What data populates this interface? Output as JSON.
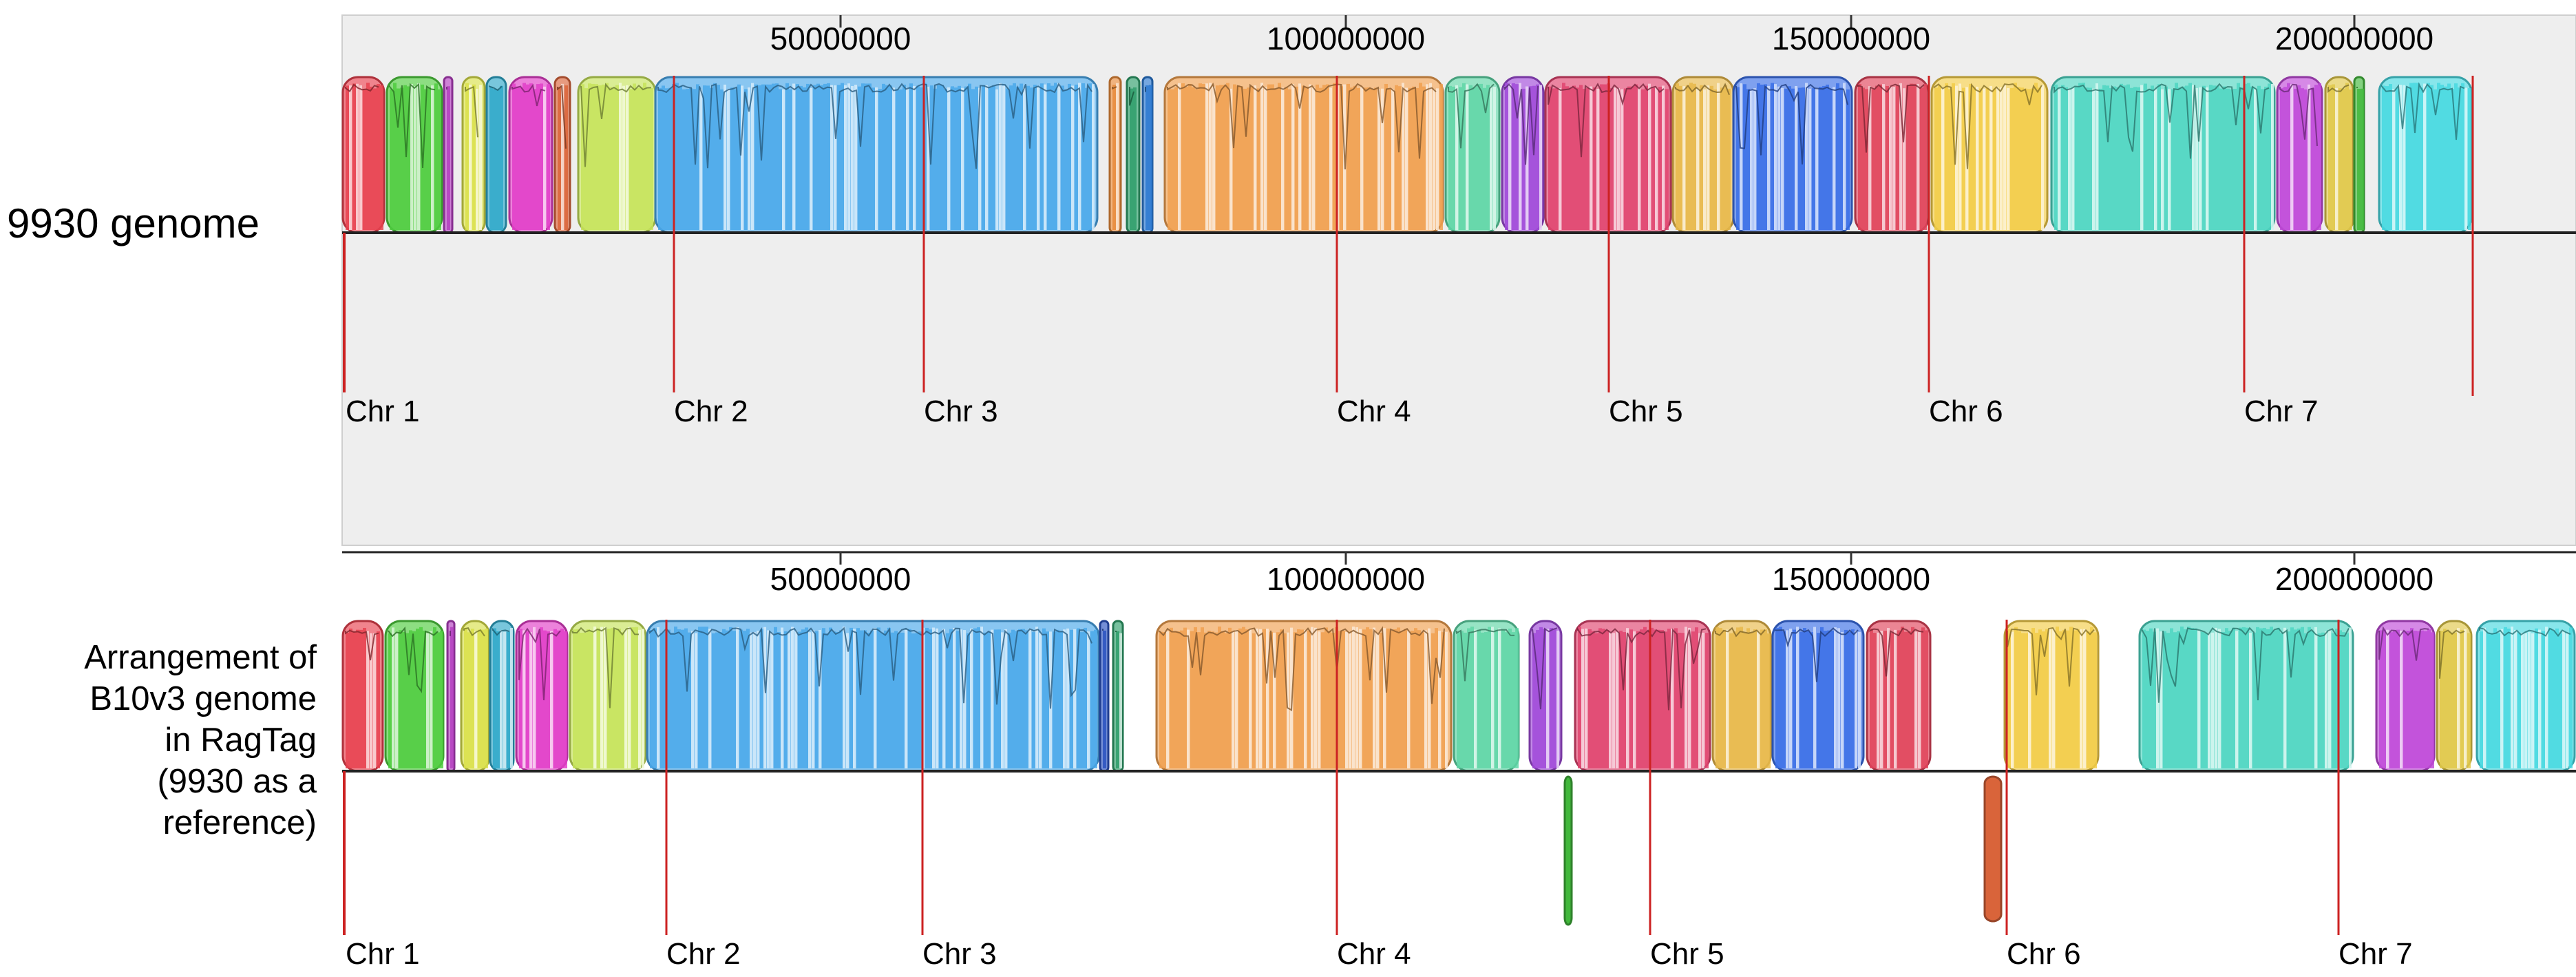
{
  "labels": {
    "top_genome": "9930 genome",
    "bottom_genome_lines": [
      "Arrangement of",
      "B10v3 genome",
      "in RagTag",
      "(9930 as a",
      "reference)"
    ]
  },
  "axis_ticks": [
    "50000000",
    "100000000",
    "150000000",
    "200000000"
  ],
  "chromosome_labels": [
    "Chr 1",
    "Chr 2",
    "Chr 3",
    "Chr 4",
    "Chr 5",
    "Chr 6",
    "Chr 7"
  ],
  "colors": {
    "panel_bg": "#eeeeee",
    "boundary_line": "#cc2222",
    "axis_line": "#222222"
  },
  "top_blocks": [
    {
      "color": "#e8414f"
    },
    {
      "color": "#4fcc3f"
    },
    {
      "color": "#b43fc0"
    },
    {
      "color": "#d9e04a"
    },
    {
      "color": "#2fa8c9"
    },
    {
      "color": "#e23ec8"
    },
    {
      "color": "#d9643a"
    },
    {
      "color": "#c6e35a"
    },
    {
      "color": "#4aa8ea"
    },
    {
      "color": "#e88a3a"
    },
    {
      "color": "#2e9e6a"
    },
    {
      "color": "#2a78d0"
    },
    {
      "color": "#f0a050"
    },
    {
      "color": "#5fd6a6"
    },
    {
      "color": "#a04ad8"
    },
    {
      "color": "#e0446e"
    },
    {
      "color": "#e8b84a"
    },
    {
      "color": "#3a6ee6"
    },
    {
      "color": "#e0445a"
    },
    {
      "color": "#f2cc48"
    },
    {
      "color": "#4fd6c2"
    },
    {
      "color": "#c04ad8"
    },
    {
      "color": "#e0c84a"
    },
    {
      "color": "#42b83c"
    },
    {
      "color": "#48d8e0"
    }
  ],
  "bottom_blocks": [
    {
      "color": "#e8414f"
    },
    {
      "color": "#4fcc3f"
    },
    {
      "color": "#b43fc0"
    },
    {
      "color": "#d9e04a"
    },
    {
      "color": "#2fa8c9"
    },
    {
      "color": "#e23ec8"
    },
    {
      "color": "#c6e35a"
    },
    {
      "color": "#4aa8ea"
    },
    {
      "color": "#2a52c0"
    },
    {
      "color": "#2e9e6a"
    },
    {
      "color": "#f0a050"
    },
    {
      "color": "#5fd6a6"
    },
    {
      "color": "#a04ad8"
    },
    {
      "color": "#e0446e"
    },
    {
      "color": "#e8b84a"
    },
    {
      "color": "#3a6ee6"
    },
    {
      "color": "#e0445a"
    },
    {
      "color": "#f2cc48"
    },
    {
      "color": "#4fd6c2"
    },
    {
      "color": "#c04ad8"
    },
    {
      "color": "#e0c84a"
    },
    {
      "color": "#48d8e0"
    }
  ],
  "inverted_blocks": [
    {
      "color": "#42b83c"
    },
    {
      "color": "#d9643a"
    }
  ]
}
